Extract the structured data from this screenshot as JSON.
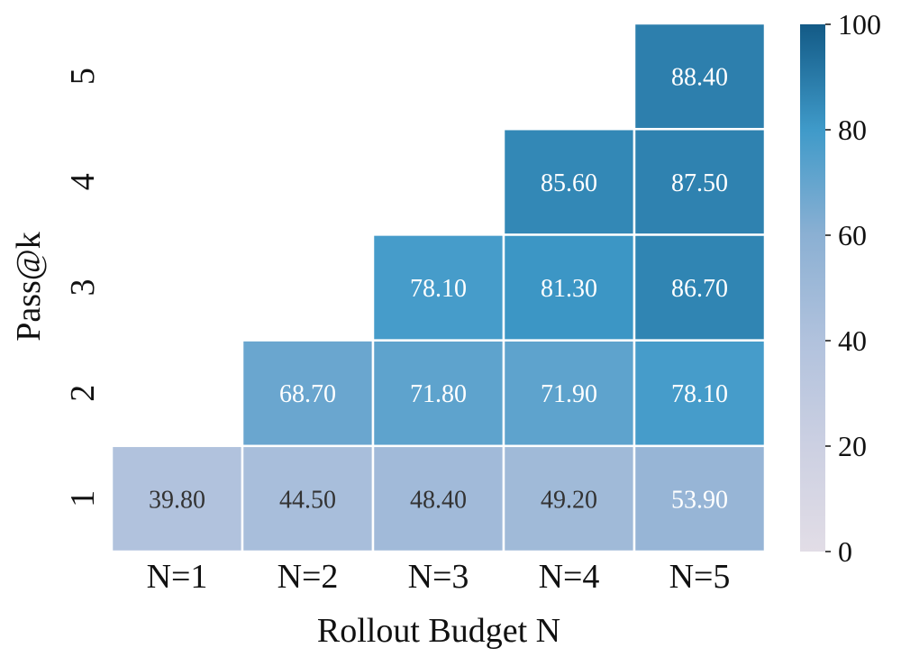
{
  "chart_data": {
    "type": "heatmap",
    "xlabel": "Rollout Budget N",
    "ylabel": "Pass@k",
    "x_categories": [
      "N=1",
      "N=2",
      "N=3",
      "N=4",
      "N=5"
    ],
    "y_categories": [
      "1",
      "2",
      "3",
      "4",
      "5"
    ],
    "values": [
      [
        39.8,
        44.5,
        48.4,
        49.2,
        53.9
      ],
      [
        null,
        68.7,
        71.8,
        71.9,
        78.1
      ],
      [
        null,
        null,
        78.1,
        81.3,
        86.7
      ],
      [
        null,
        null,
        null,
        85.6,
        87.5
      ],
      [
        null,
        null,
        null,
        null,
        88.4
      ]
    ],
    "colorbar": {
      "min": 0,
      "max": 100,
      "ticks": [
        "0",
        "20",
        "40",
        "60",
        "80",
        "100"
      ]
    },
    "colormap": {
      "low": "#e2dde6",
      "mid_low": "#b1c2dd",
      "mid": "#8bb0d3",
      "mid_high": "#3f9ac9",
      "high": "#135a86"
    },
    "annotation_light_color": "#ffffff",
    "annotation_dark_color": "#333333"
  }
}
